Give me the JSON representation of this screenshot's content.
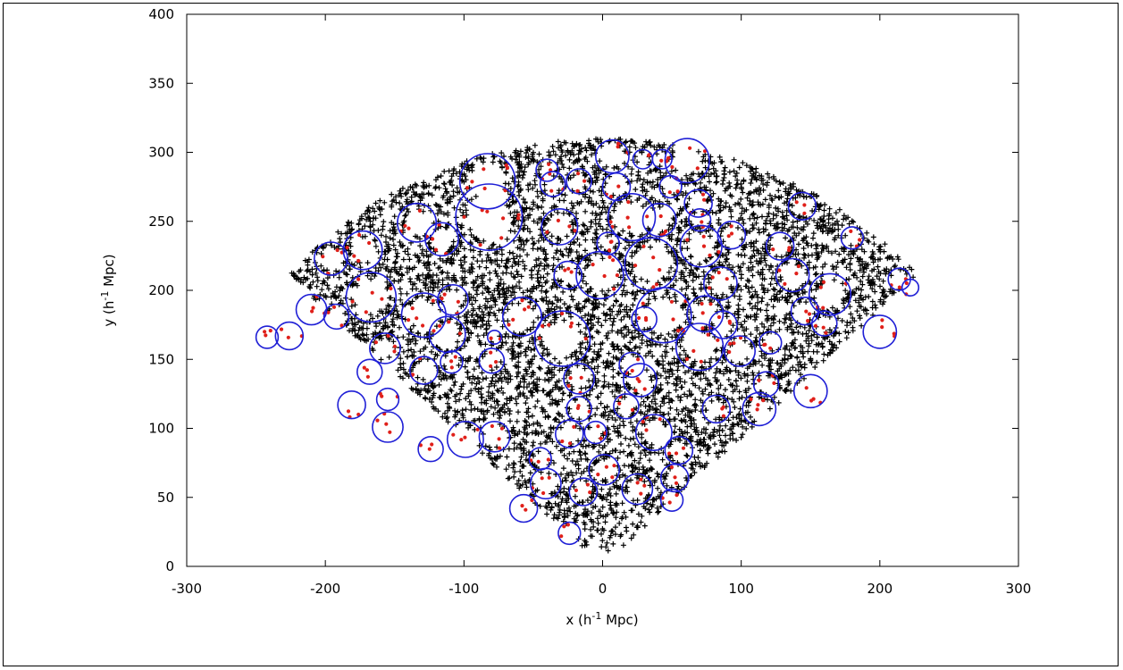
{
  "chart_data": {
    "type": "scatter",
    "xlabel_base": "x (h",
    "xlabel_exp": "-1",
    "xlabel_tail": " Mpc)",
    "ylabel_base": "y (h",
    "ylabel_exp": "-1",
    "ylabel_tail": " Mpc)",
    "xlim": [
      -300,
      300
    ],
    "ylim": [
      0,
      400
    ],
    "xticks": [
      -300,
      -200,
      -100,
      0,
      100,
      200,
      300
    ],
    "yticks": [
      0,
      50,
      100,
      150,
      200,
      250,
      300,
      350,
      400
    ],
    "grid": false,
    "colors": {
      "galaxies": "#000000",
      "void_galaxies": "#e0201a",
      "voids": "#1f1fd6"
    },
    "survey_wedge": {
      "r_min": 10,
      "r_max": 310,
      "half_angle_deg": 47
    },
    "series": [
      {
        "kind": "circles",
        "points": [
          [
            -242,
            166,
            8
          ],
          [
            -226,
            167,
            10
          ],
          [
            -210,
            186,
            11
          ],
          [
            -196,
            223,
            12
          ],
          [
            -192,
            181,
            9
          ],
          [
            -173,
            229,
            14
          ],
          [
            -167,
            195,
            18
          ],
          [
            -181,
            117,
            10
          ],
          [
            -168,
            141,
            9
          ],
          [
            -157,
            158,
            11
          ],
          [
            -155,
            121,
            8
          ],
          [
            -155,
            101,
            11
          ],
          [
            -134,
            249,
            14
          ],
          [
            -129,
            182,
            16
          ],
          [
            -129,
            142,
            10
          ],
          [
            -124,
            85,
            9
          ],
          [
            -116,
            237,
            12
          ],
          [
            -112,
            168,
            13
          ],
          [
            -109,
            148,
            8
          ],
          [
            -108,
            193,
            11
          ],
          [
            -99,
            92,
            13
          ],
          [
            -83,
            279,
            20
          ],
          [
            -82,
            253,
            24
          ],
          [
            -80,
            149,
            9
          ],
          [
            -78,
            166,
            5
          ],
          [
            -78,
            94,
            11
          ],
          [
            -58,
            181,
            14
          ],
          [
            -57,
            42,
            10
          ],
          [
            -45,
            78,
            8
          ],
          [
            -41,
            60,
            11
          ],
          [
            -40,
            287,
            8
          ],
          [
            -36,
            277,
            9
          ],
          [
            -31,
            246,
            13
          ],
          [
            -29,
            165,
            20
          ],
          [
            -25,
            211,
            10
          ],
          [
            -24,
            96,
            10
          ],
          [
            -24,
            24,
            8
          ],
          [
            -17,
            136,
            11
          ],
          [
            -17,
            114,
            9
          ],
          [
            -14,
            54,
            10
          ],
          [
            -17,
            279,
            9
          ],
          [
            -5,
            97,
            8
          ],
          [
            -2,
            211,
            17
          ],
          [
            1,
            70,
            11
          ],
          [
            4,
            234,
            8
          ],
          [
            7,
            297,
            12
          ],
          [
            10,
            275,
            10
          ],
          [
            17,
            116,
            9
          ],
          [
            21,
            253,
            17
          ],
          [
            21,
            146,
            9
          ],
          [
            25,
            56,
            11
          ],
          [
            27,
            135,
            12
          ],
          [
            30,
            179,
            9
          ],
          [
            29,
            295,
            7
          ],
          [
            35,
            219,
            19
          ],
          [
            37,
            97,
            13
          ],
          [
            41,
            251,
            12
          ],
          [
            43,
            295,
            7
          ],
          [
            44,
            182,
            20
          ],
          [
            49,
            275,
            8
          ],
          [
            50,
            48,
            8
          ],
          [
            52,
            64,
            10
          ],
          [
            55,
            84,
            10
          ],
          [
            61,
            294,
            16
          ],
          [
            69,
            263,
            10
          ],
          [
            70,
            251,
            8
          ],
          [
            70,
            159,
            17
          ],
          [
            71,
            232,
            15
          ],
          [
            74,
            183,
            13
          ],
          [
            82,
            114,
            10
          ],
          [
            85,
            205,
            12
          ],
          [
            87,
            175,
            10
          ],
          [
            93,
            240,
            10
          ],
          [
            99,
            156,
            11
          ],
          [
            113,
            114,
            12
          ],
          [
            118,
            132,
            9
          ],
          [
            121,
            162,
            8
          ],
          [
            128,
            232,
            10
          ],
          [
            137,
            211,
            12
          ],
          [
            144,
            261,
            10
          ],
          [
            146,
            185,
            10
          ],
          [
            150,
            127,
            12
          ],
          [
            160,
            176,
            9
          ],
          [
            164,
            197,
            15
          ],
          [
            200,
            170,
            12
          ],
          [
            214,
            208,
            8
          ],
          [
            222,
            202,
            6
          ],
          [
            180,
            238,
            8
          ]
        ]
      }
    ]
  }
}
